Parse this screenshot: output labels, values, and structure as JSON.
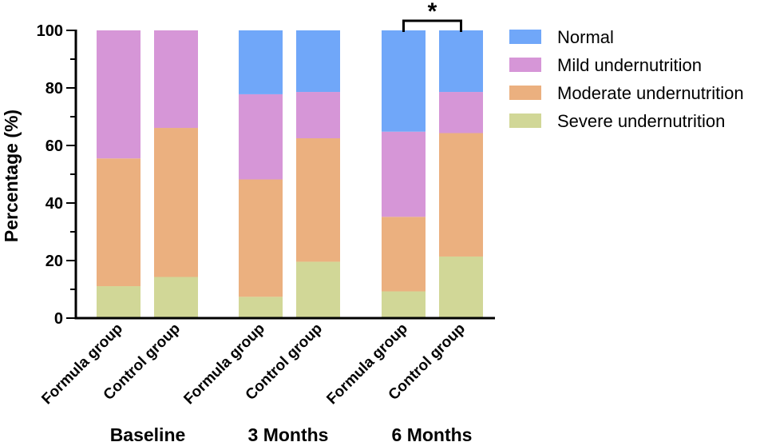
{
  "chart_data": {
    "type": "bar",
    "stacked": true,
    "title": "",
    "xlabel": "",
    "ylabel": "Percentage (%)",
    "ylim": [
      0,
      100
    ],
    "yticks": [
      0,
      20,
      40,
      60,
      80,
      100
    ],
    "groups": [
      "Baseline",
      "3 Months",
      "6 Months"
    ],
    "categories": [
      "Formula group",
      "Control group",
      "Formula group",
      "Control group",
      "Formula group",
      "Control group"
    ],
    "category_group": [
      0,
      0,
      1,
      1,
      2,
      2
    ],
    "series": [
      {
        "name": "Severe undernutrition",
        "color": "#d1d797",
        "values": [
          11.1,
          14.3,
          7.4,
          19.6,
          9.3,
          21.4
        ]
      },
      {
        "name": "Moderate undernutrition",
        "color": "#ebb07f",
        "values": [
          44.4,
          51.8,
          40.8,
          42.9,
          25.9,
          42.9
        ]
      },
      {
        "name": "Mild undernutrition",
        "color": "#d696d7",
        "values": [
          44.5,
          33.9,
          29.6,
          16.1,
          29.6,
          14.3
        ]
      },
      {
        "name": "Normal",
        "color": "#70a7f9",
        "values": [
          0,
          0,
          22.2,
          21.4,
          35.2,
          21.4
        ]
      }
    ],
    "legend_order": [
      "Normal",
      "Mild undernutrition",
      "Moderate undernutrition",
      "Severe undernutrition"
    ],
    "legend_position": "top-right",
    "significance": {
      "label": "*",
      "between": [
        4,
        5
      ]
    }
  }
}
